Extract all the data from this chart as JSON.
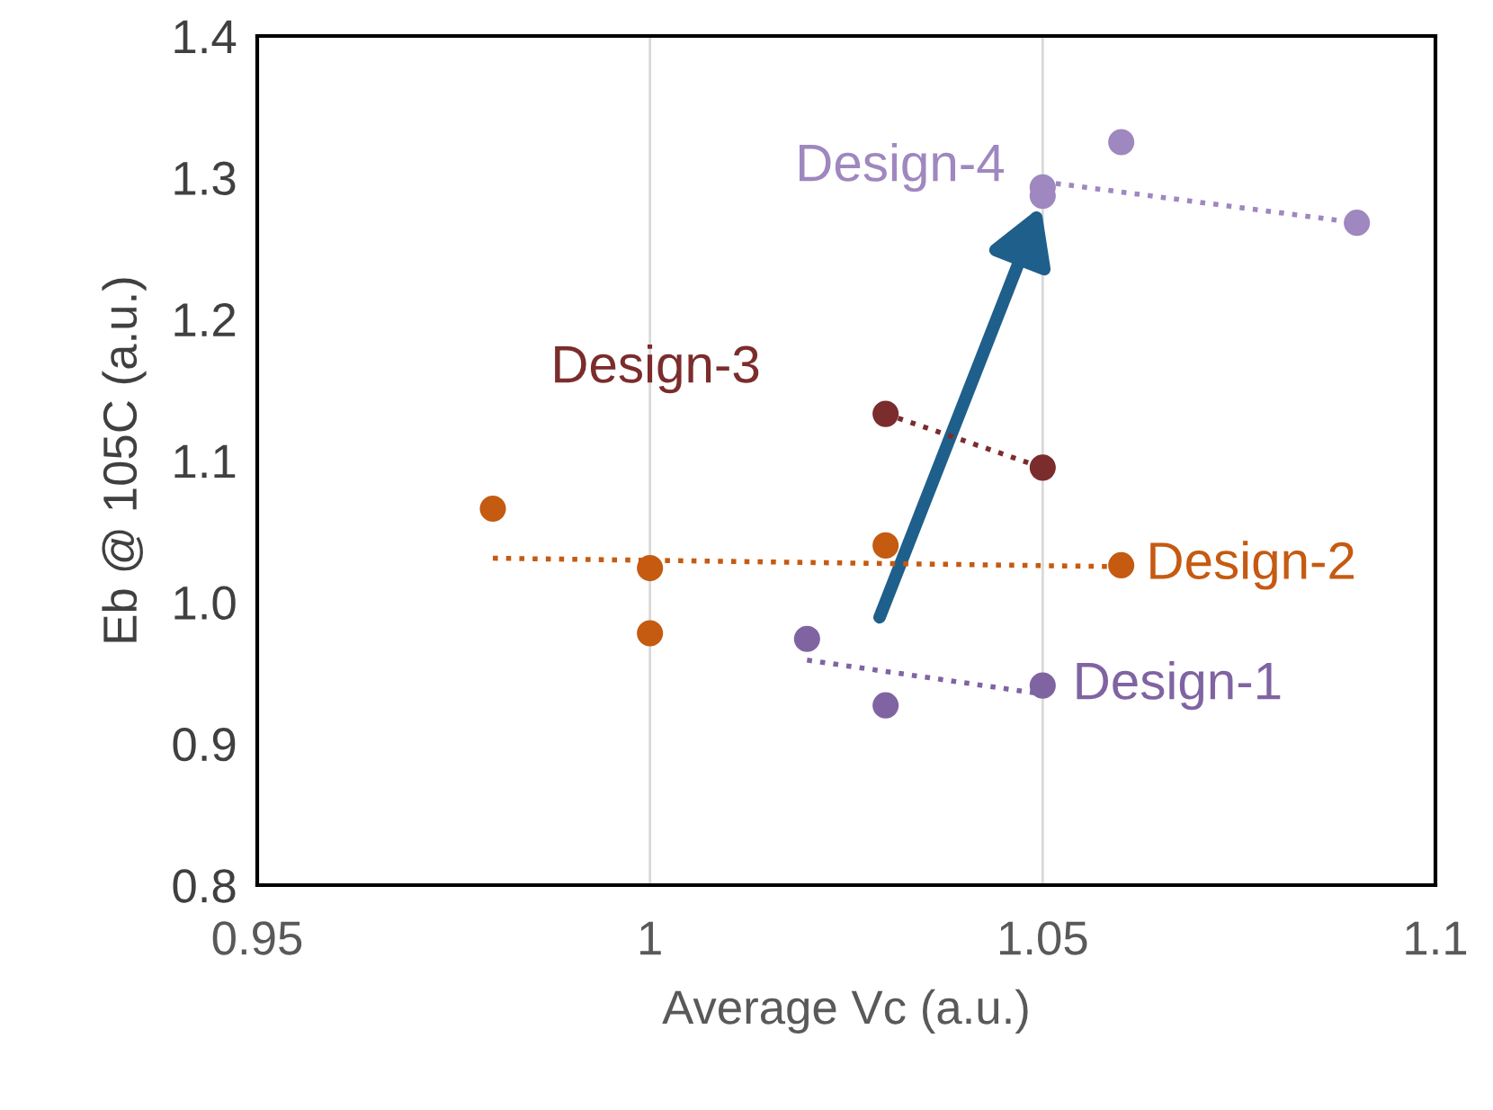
{
  "chart_data": {
    "type": "scatter",
    "xlabel": "Average Vc (a.u.)",
    "ylabel": "Eb @ 105C (a.u.)",
    "xlim": [
      0.95,
      1.1
    ],
    "xticks": [
      0.95,
      1,
      1.05,
      1.1
    ],
    "ylim": [
      0.8,
      1.4
    ],
    "yticks": [
      {
        "value": 0.8,
        "label": "0.8"
      },
      {
        "value": 0.9,
        "label": "0.9"
      },
      {
        "value": 1.0,
        "label": "1.0"
      },
      {
        "value": 1.1,
        "label": "1.1"
      },
      {
        "value": 1.2,
        "label": "1.2"
      },
      {
        "value": 1.3,
        "label": "1.3"
      },
      {
        "value": 1.4,
        "label": "1.4"
      }
    ],
    "grid": "x",
    "marker": "circle",
    "series": [
      {
        "name": "Design-1",
        "color": "#8064a2",
        "x": [
          1.02,
          1.03,
          1.05
        ],
        "values": [
          0.974,
          0.927,
          0.941
        ]
      },
      {
        "name": "Design-2",
        "color": "#c55a11",
        "x": [
          0.98,
          1.0,
          1.0,
          1.03,
          1.06
        ],
        "values": [
          1.066,
          1.024,
          0.978,
          1.04,
          1.026
        ]
      },
      {
        "name": "Design-3",
        "color": "#7b2c2c",
        "x": [
          1.03,
          1.05
        ],
        "values": [
          1.133,
          1.095
        ]
      },
      {
        "name": "Design-4",
        "color": "#9f87bf",
        "x": [
          1.05,
          1.05,
          1.06,
          1.09
        ],
        "values": [
          1.293,
          1.287,
          1.325,
          1.268
        ]
      },
      {
        "type": "line",
        "marker": "none",
        "line_style": "dotted",
        "color": "#8064a2",
        "x": [
          1.02,
          1.05
        ],
        "values": [
          0.959,
          0.935
        ]
      },
      {
        "type": "line",
        "marker": "none",
        "line_style": "dotted",
        "color": "#c55a11",
        "x": [
          0.98,
          1.06
        ],
        "values": [
          1.031,
          1.025
        ]
      },
      {
        "type": "line",
        "marker": "none",
        "line_style": "dotted",
        "color": "#7b2c2c",
        "x": [
          1.03,
          1.05
        ],
        "values": [
          1.133,
          1.095
        ]
      },
      {
        "type": "line",
        "marker": "none",
        "line_style": "dotted",
        "color": "#9f87bf",
        "x": [
          1.05,
          1.09
        ],
        "values": [
          1.297,
          1.268
        ]
      }
    ]
  }
}
